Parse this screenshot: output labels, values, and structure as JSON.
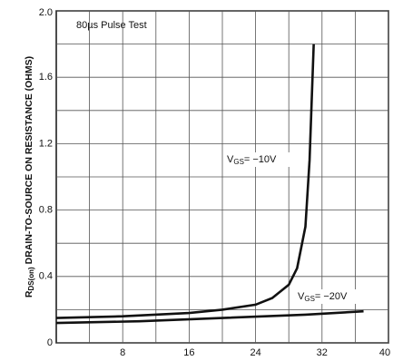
{
  "chart_data": {
    "type": "line",
    "ylabel_symbol": "R",
    "ylabel_sub": "DS(on)",
    "ylabel": "DRAIN-TO-SOURCE ON RESISTANCE (OHMS)",
    "annotation": "80µs Pulse Test",
    "xlim": [
      0,
      40
    ],
    "xticks": [
      8,
      16,
      24,
      32,
      40
    ],
    "x_minor_ticks": [
      4,
      12,
      20,
      28,
      36
    ],
    "ylim": [
      0,
      2.0
    ],
    "yticks": [
      0,
      0.4,
      0.8,
      1.2,
      1.6,
      {
        "value": 2,
        "label": "2.0"
      }
    ],
    "y_minor_ticks": [
      0.2,
      0.6,
      1.0,
      1.4,
      1.8
    ],
    "grid": true,
    "series": [
      {
        "label_symbol": "V",
        "label_sub": "GS",
        "label_value": "= −10V",
        "color": "#111",
        "x": [
          0,
          8,
          16,
          20,
          24,
          26,
          28,
          29,
          30,
          30.5,
          31
        ],
        "values": [
          0.15,
          0.16,
          0.18,
          0.2,
          0.23,
          0.27,
          0.35,
          0.45,
          0.7,
          1.1,
          1.8
        ]
      },
      {
        "label_symbol": "V",
        "label_sub": "GS",
        "label_value": "= −20V",
        "color": "#111",
        "x": [
          0,
          10,
          20,
          30,
          37
        ],
        "values": [
          0.12,
          0.13,
          0.15,
          0.17,
          0.19
        ]
      }
    ]
  }
}
